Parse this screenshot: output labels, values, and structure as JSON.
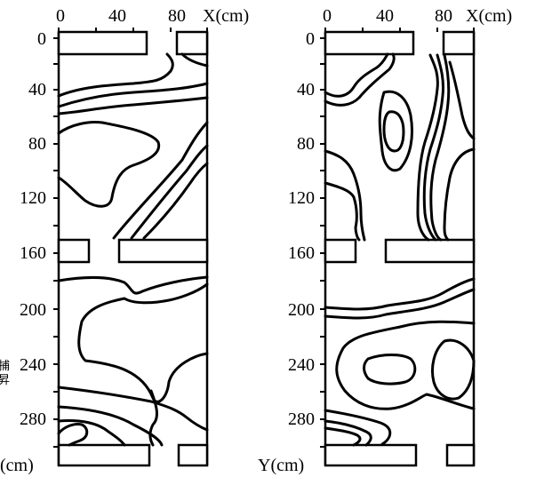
{
  "x_ticks": [
    "0",
    "40",
    "80"
  ],
  "x_unit": "X(cm)",
  "y_ticks": [
    "0",
    "40",
    "80",
    "120",
    "160",
    "200",
    "240",
    "280"
  ],
  "left_panel": {
    "y_unit": "(cm)"
  },
  "right_panel": {
    "y_unit": "Y(cm)"
  },
  "side_text": [
    "捕",
    "昇"
  ]
}
